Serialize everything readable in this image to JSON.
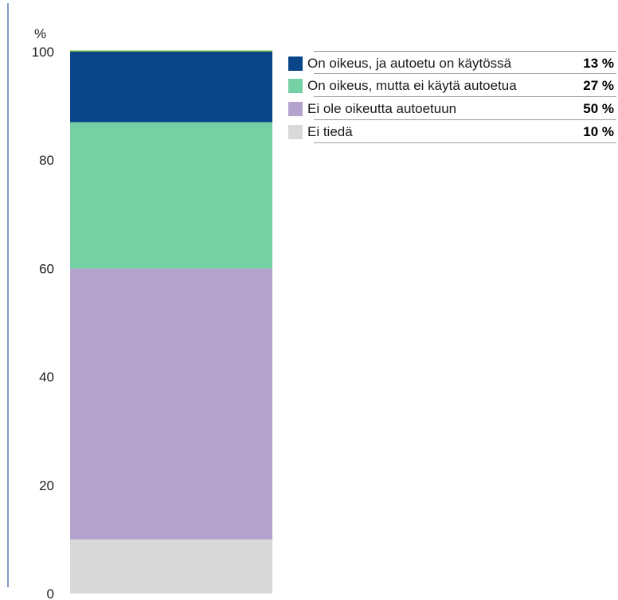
{
  "chart_data": {
    "type": "bar",
    "stacked": true,
    "unit_label": "%",
    "ylim": [
      0,
      100
    ],
    "y_ticks": [
      0,
      20,
      40,
      60,
      80,
      100
    ],
    "grid": false,
    "legend_position": "top-right",
    "series": [
      {
        "name": "Ei tiedä",
        "value": 10,
        "value_label": "10 %",
        "color": "#d9d9d9"
      },
      {
        "name": "Ei ole oikeutta autoetuun",
        "value": 50,
        "value_label": "50 %",
        "color": "#b4a3cc"
      },
      {
        "name": "On oikeus, mutta ei käytä autoetua",
        "value": 27,
        "value_label": "27 %",
        "color": "#75d0a3"
      },
      {
        "name": "On oikeus, ja autoetu on käytössä",
        "value": 13,
        "value_label": "13 %",
        "color": "#0b4589"
      }
    ],
    "top_accent_color": "#6db33f",
    "axis_color": "#2e5c99"
  }
}
